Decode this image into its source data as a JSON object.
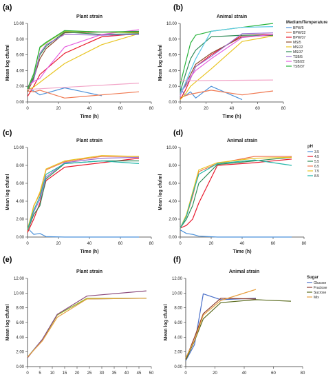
{
  "figure": {
    "panel_labels": [
      "(a)",
      "(b)",
      "(c)",
      "(d)",
      "(e)",
      "(f)"
    ]
  },
  "chart_data": [
    {
      "panel": "(a)",
      "type": "line",
      "title": "Plant strain",
      "xlabel": "Time (h)",
      "ylabel": "Mean log cfu/ml",
      "xlim": [
        0,
        80
      ],
      "ylim": [
        0,
        10
      ],
      "xticks": [
        "0",
        "20",
        "40",
        "60",
        "80"
      ],
      "yticks": [
        "0.00",
        "2.00",
        "4.00",
        "6.00",
        "8.00",
        "10.00"
      ],
      "series": [
        {
          "color": "#4a90d9",
          "x": [
            0,
            4,
            8,
            24,
            48
          ],
          "y": [
            1.8,
            1.4,
            0.9,
            1.8,
            0.8
          ]
        },
        {
          "color": "#f07850",
          "x": [
            0,
            4,
            8,
            24,
            48,
            72
          ],
          "y": [
            1.4,
            1.3,
            1.5,
            0.5,
            0.9,
            1.3
          ]
        },
        {
          "color": "#e8192c",
          "x": [
            0,
            4,
            8,
            24,
            48,
            72
          ],
          "y": [
            0.7,
            2.0,
            3.5,
            6.2,
            8.3,
            8.7
          ]
        },
        {
          "color": "#8b4a2b",
          "x": [
            0,
            4,
            8,
            12,
            24,
            48,
            72
          ],
          "y": [
            1.3,
            3.0,
            5.5,
            6.8,
            8.8,
            8.9,
            8.9
          ]
        },
        {
          "color": "#e8c420",
          "x": [
            0,
            4,
            8,
            24,
            48,
            72
          ],
          "y": [
            1.5,
            1.9,
            2.5,
            4.9,
            7.3,
            8.7
          ]
        },
        {
          "color": "#2e8b57",
          "x": [
            0,
            4,
            8,
            12,
            24,
            48,
            72
          ],
          "y": [
            1.6,
            3.2,
            6.0,
            7.1,
            8.9,
            8.6,
            8.7
          ]
        },
        {
          "color": "#9b6fd1",
          "x": [
            0,
            4,
            8,
            12,
            24,
            48,
            72
          ],
          "y": [
            1.8,
            2.8,
            6.2,
            7.3,
            8.6,
            8.5,
            8.6
          ]
        },
        {
          "color": "#e65fe0",
          "x": [
            0,
            4,
            8,
            12,
            24,
            48,
            72
          ],
          "y": [
            2.0,
            2.6,
            3.0,
            4.1,
            7.0,
            8.6,
            9.2
          ]
        },
        {
          "color": "#f2a6c8",
          "x": [
            0,
            72
          ],
          "y": [
            1.6,
            2.4
          ]
        },
        {
          "color": "#a2bf2e",
          "x": [
            0,
            4,
            8,
            12,
            24,
            48,
            72
          ],
          "y": [
            1.7,
            3.5,
            6.9,
            7.5,
            9.0,
            8.9,
            8.8
          ]
        },
        {
          "color": "#27b33b",
          "x": [
            0,
            4,
            8,
            12,
            24,
            48,
            72
          ],
          "y": [
            1.7,
            3.6,
            7.0,
            7.6,
            9.1,
            8.9,
            9.0
          ]
        }
      ]
    },
    {
      "panel": "(b)",
      "type": "line",
      "title": "Animal strain",
      "xlabel": "Time (h)",
      "ylabel": "Mean log cfu/ml",
      "xlim": [
        0,
        80
      ],
      "ylim": [
        0,
        10
      ],
      "xticks": [
        "0",
        "20",
        "40",
        "60",
        "80"
      ],
      "yticks": [
        "0.00",
        "2.00",
        "4.00",
        "6.00",
        "8.00",
        "10.00"
      ],
      "legend": {
        "title": "Medium/Temperature",
        "position": "right"
      },
      "series": [
        {
          "name": "BPW/5",
          "color": "#4a90d9",
          "x": [
            0,
            4,
            8,
            12,
            24,
            48
          ],
          "y": [
            1.8,
            0.8,
            1.3,
            0.5,
            2.0,
            0.3
          ]
        },
        {
          "name": "BPW/22",
          "color": "#f07850",
          "x": [
            0,
            4,
            8,
            24,
            48,
            72
          ],
          "y": [
            0.5,
            0.8,
            1.0,
            1.5,
            0.9,
            1.4
          ]
        },
        {
          "name": "BPW/37",
          "color": "#e8192c",
          "x": [
            0,
            4,
            8,
            12,
            24,
            48,
            72
          ],
          "y": [
            0.3,
            1.5,
            3.0,
            4.5,
            6.0,
            8.5,
            8.6
          ]
        },
        {
          "name": "MS/5",
          "color": "#8b4a2b",
          "x": [
            0,
            4,
            8,
            12,
            24,
            48,
            72
          ],
          "y": [
            1.0,
            2.2,
            3.5,
            4.8,
            6.2,
            8.3,
            8.5
          ]
        },
        {
          "name": "MS/22",
          "color": "#e8c420",
          "x": [
            0,
            4,
            8,
            24,
            48,
            72
          ],
          "y": [
            0.3,
            1.0,
            2.0,
            4.2,
            7.7,
            8.4
          ]
        },
        {
          "name": "MS/37",
          "color": "#2e8b57",
          "x": [
            0,
            4,
            8,
            12,
            24,
            48,
            72
          ],
          "y": [
            1.3,
            3.5,
            5.5,
            6.6,
            8.3,
            8.5,
            8.5
          ]
        },
        {
          "name": "TSB/5",
          "color": "#9b6fd1",
          "x": [
            0,
            4,
            8,
            12,
            24,
            48,
            72
          ],
          "y": [
            1.2,
            2.0,
            3.0,
            4.5,
            5.8,
            8.7,
            8.8
          ]
        },
        {
          "name": "TSB/22",
          "color": "#e65fe0",
          "x": [
            0,
            4,
            8,
            12,
            24,
            48,
            72
          ],
          "y": [
            0.8,
            2.4,
            3.2,
            4.0,
            5.5,
            8.2,
            8.6
          ]
        },
        {
          "name": "TSB/37",
          "color": "#27b33b",
          "x": [
            0,
            4,
            8,
            12,
            24,
            48,
            72
          ],
          "y": [
            2.2,
            4.9,
            7.5,
            8.5,
            9.0,
            9.5,
            10.0
          ]
        },
        {
          "color": "#f2a6c8",
          "x": [
            0,
            72
          ],
          "y": [
            2.7,
            2.8
          ]
        },
        {
          "color": "#5ac8e6",
          "x": [
            0,
            4,
            8,
            12,
            24,
            48,
            72
          ],
          "y": [
            1.0,
            2.4,
            4.0,
            5.5,
            9.0,
            9.5,
            9.6
          ]
        }
      ]
    },
    {
      "panel": "(c)",
      "type": "line",
      "title": "Plant strain",
      "xlabel": "Time (h)",
      "ylabel": "Mean log cfu/ml",
      "xlim": [
        0,
        80
      ],
      "ylim": [
        0,
        10
      ],
      "xticks": [
        "0",
        "20",
        "40",
        "60",
        "80"
      ],
      "yticks": [
        "0.00",
        "2.00",
        "4.00",
        "6.00",
        "8.00",
        "10.00"
      ],
      "series": [
        {
          "color": "#4a90d9",
          "x": [
            0,
            4,
            8,
            12,
            24,
            48,
            72
          ],
          "y": [
            1.0,
            0.3,
            0.4,
            0.05,
            0.0,
            0.0,
            0.0
          ]
        },
        {
          "color": "#e8192c",
          "x": [
            0,
            4,
            8,
            12,
            24,
            48,
            72
          ],
          "y": [
            0.5,
            2.0,
            3.8,
            6.3,
            7.8,
            8.3,
            8.8
          ]
        },
        {
          "color": "#2e8b57",
          "x": [
            0,
            4,
            8,
            12,
            24,
            48,
            72
          ],
          "y": [
            0.7,
            2.5,
            3.5,
            6.5,
            8.2,
            8.5,
            8.5
          ]
        },
        {
          "color": "#9b6fd1",
          "x": [
            0,
            4,
            8,
            12,
            24,
            48,
            72
          ],
          "y": [
            0.8,
            2.8,
            4.2,
            6.7,
            8.3,
            8.8,
            8.9
          ]
        },
        {
          "color": "#f07850",
          "x": [
            0,
            4,
            8,
            12,
            24,
            48,
            72
          ],
          "y": [
            0.6,
            3.5,
            4.8,
            7.5,
            8.4,
            9.0,
            9.0
          ]
        },
        {
          "color": "#e8c420",
          "x": [
            0,
            4,
            8,
            12,
            24,
            48,
            72
          ],
          "y": [
            0.9,
            3.4,
            5.0,
            7.6,
            8.5,
            9.1,
            9.0
          ]
        },
        {
          "color": "#1fb5a8",
          "x": [
            0,
            4,
            8,
            12,
            24,
            48,
            72
          ],
          "y": [
            0.8,
            3.0,
            4.5,
            7.0,
            8.2,
            8.5,
            8.2
          ]
        }
      ]
    },
    {
      "panel": "(d)",
      "type": "line",
      "title": "Animal strain",
      "xlabel": "Time (h)",
      "ylabel": "Mean log cfu/ml",
      "xlim": [
        0,
        80
      ],
      "ylim": [
        0,
        10
      ],
      "xticks": [
        "0",
        "20",
        "40",
        "60",
        "80"
      ],
      "yticks": [
        "0.00",
        "2.00",
        "4.00",
        "6.00",
        "8.00",
        "10.00"
      ],
      "legend": {
        "title": "pH",
        "position": "right"
      },
      "series": [
        {
          "name": "3.5",
          "color": "#4a90d9",
          "x": [
            0,
            4,
            8,
            12,
            24,
            48,
            72
          ],
          "y": [
            0.8,
            0.4,
            0.3,
            0.1,
            0.0,
            0.0,
            0.0
          ]
        },
        {
          "name": "4.5",
          "color": "#e8192c",
          "x": [
            0,
            4,
            8,
            12,
            24,
            48,
            72
          ],
          "y": [
            1.0,
            1.3,
            2.0,
            3.8,
            8.0,
            8.3,
            8.7
          ]
        },
        {
          "name": "5.5",
          "color": "#2e8b57",
          "x": [
            0,
            4,
            8,
            12,
            24,
            48,
            72
          ],
          "y": [
            1.0,
            2.0,
            3.5,
            6.0,
            8.1,
            8.5,
            8.9
          ]
        },
        {
          "name": "6.5",
          "color": "#f07850",
          "x": [
            0,
            4,
            8,
            12,
            24,
            48,
            72
          ],
          "y": [
            1.0,
            2.3,
            4.5,
            7.3,
            8.2,
            9.0,
            9.0
          ]
        },
        {
          "name": "7.5",
          "color": "#e8c420",
          "x": [
            0,
            4,
            8,
            12,
            24,
            48,
            72
          ],
          "y": [
            1.0,
            2.5,
            5.0,
            7.5,
            8.3,
            8.8,
            8.9
          ]
        },
        {
          "name": "8.5",
          "color": "#1fb5a8",
          "x": [
            0,
            4,
            8,
            12,
            24,
            48,
            72
          ],
          "y": [
            1.0,
            2.3,
            4.8,
            7.0,
            8.2,
            8.6,
            8.0
          ]
        }
      ]
    },
    {
      "panel": "(e)",
      "type": "line",
      "title": "Plant strain",
      "xlabel": "Time (h)",
      "ylabel": "Mean log cfu/ml",
      "xlim": [
        0,
        50
      ],
      "ylim": [
        0,
        12
      ],
      "xticks": [
        "0",
        "5",
        "10",
        "15",
        "20",
        "25",
        "30",
        "35",
        "40",
        "45",
        "50"
      ],
      "yticks": [
        "0.00",
        "2.00",
        "4.00",
        "6.00",
        "8.00",
        "10.00",
        "12.00"
      ],
      "series": [
        {
          "color": "#4a6fc9",
          "x": [
            0,
            6,
            12,
            24,
            48
          ],
          "y": [
            1.3,
            3.7,
            7.1,
            9.2,
            9.3
          ]
        },
        {
          "color": "#a2bf2e",
          "x": [
            0,
            6,
            12,
            24,
            48
          ],
          "y": [
            1.3,
            3.6,
            7.0,
            9.3,
            9.3
          ]
        },
        {
          "color": "#8b4a7b",
          "x": [
            0,
            6,
            12,
            24,
            48
          ],
          "y": [
            1.2,
            3.7,
            7.1,
            9.6,
            10.3
          ]
        },
        {
          "color": "#e8a040",
          "x": [
            0,
            6,
            12,
            24,
            48
          ],
          "y": [
            1.3,
            3.5,
            6.7,
            9.2,
            9.3
          ]
        }
      ]
    },
    {
      "panel": "(f)",
      "type": "line",
      "title": "Animal strain",
      "xlabel": "Time (h)",
      "ylabel": "Mean log cfu/ml",
      "xlim": [
        0,
        80
      ],
      "ylim": [
        0,
        12
      ],
      "xticks": [
        "0",
        "20",
        "40",
        "60",
        "80"
      ],
      "yticks": [
        "0.00",
        "2.00",
        "4.00",
        "6.00",
        "8.00",
        "10.00",
        "12.00"
      ],
      "legend": {
        "title": "Sugar",
        "position": "right"
      },
      "series": [
        {
          "name": "Glucose",
          "color": "#4a6fc9",
          "x": [
            0,
            6,
            12,
            24,
            48
          ],
          "y": [
            0.8,
            3.0,
            9.9,
            9.1,
            9.3
          ]
        },
        {
          "name": "Fructose",
          "color": "#8b3a2b",
          "x": [
            0,
            6,
            12,
            24,
            48
          ],
          "y": [
            1.0,
            4.0,
            7.2,
            9.3,
            9.2
          ]
        },
        {
          "name": "Sucrose",
          "color": "#5a6b1e",
          "x": [
            0,
            6,
            12,
            24,
            48,
            72
          ],
          "y": [
            0.9,
            3.5,
            6.5,
            8.7,
            9.1,
            8.9
          ]
        },
        {
          "name": "Mix",
          "color": "#e8a040",
          "x": [
            0,
            6,
            12,
            24,
            48
          ],
          "y": [
            1.2,
            3.6,
            7.0,
            9.0,
            10.5
          ]
        }
      ]
    }
  ]
}
